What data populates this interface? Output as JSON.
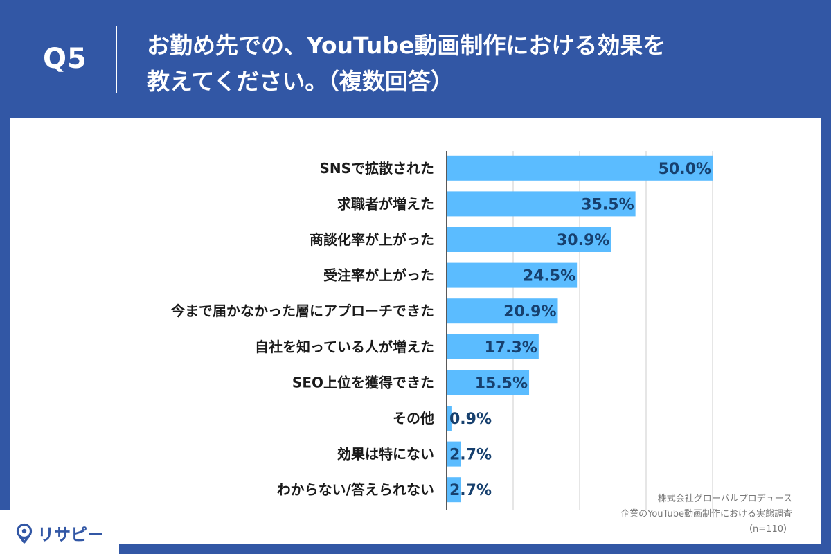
{
  "header": {
    "question_no": "Q5",
    "title_line1": "お勤め先での、YouTube動画制作における効果を",
    "title_line2": "教えてください。（複数回答）"
  },
  "colors": {
    "background": "#3257a5",
    "bar": "#5bbcff",
    "value_text": "#17406e",
    "grid": "#cccccc"
  },
  "chart_data": {
    "type": "bar",
    "orientation": "horizontal",
    "categories": [
      "SNSで拡散された",
      "求職者が増えた",
      "商談化率が上がった",
      "受注率が上がった",
      "今まで届かなかった層にアプローチできた",
      "自社を知っている人が増えた",
      "SEO上位を獲得できた",
      "その他",
      "効果は特にない",
      "わからない/答えられない"
    ],
    "values": [
      50.0,
      35.5,
      30.9,
      24.5,
      20.9,
      17.3,
      15.5,
      0.9,
      2.7,
      2.7
    ],
    "value_labels": [
      "50.0%",
      "35.5%",
      "30.9%",
      "24.5%",
      "20.9%",
      "17.3%",
      "15.5%",
      "0.9%",
      "2.7%",
      "2.7%"
    ],
    "xlim": [
      0,
      50
    ],
    "grid": true,
    "legend": "none"
  },
  "source": {
    "line1": "株式会社グローバルプロデュース",
    "line2": "企業のYouTube動画制作における実態調査",
    "line3": "（n=110）"
  },
  "logo": {
    "text": "リサピー"
  }
}
